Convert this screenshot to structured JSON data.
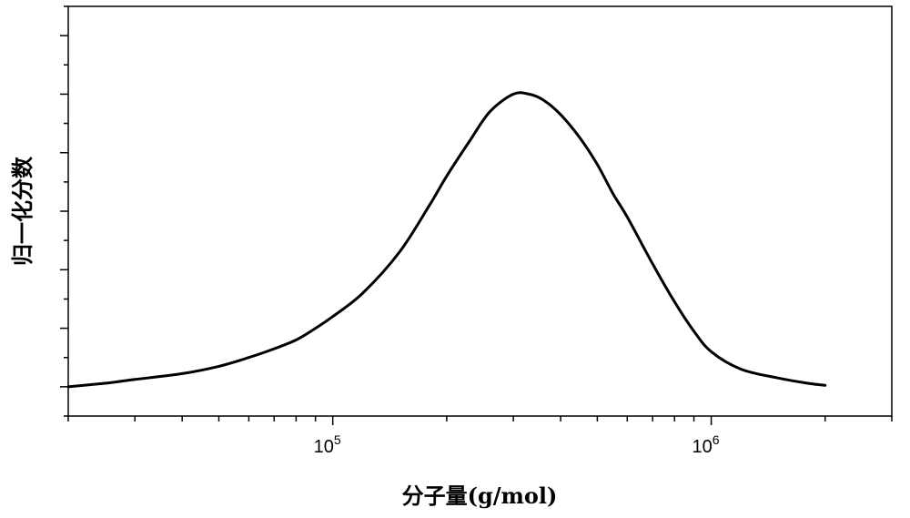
{
  "chart_data": {
    "type": "line",
    "title": "",
    "xlabel": "分子量(g/mol)",
    "ylabel": "归一化分数",
    "x_scale": "log",
    "xlim": [
      20000,
      3000000
    ],
    "ylim": [
      -0.1,
      1.3
    ],
    "grid": false,
    "x_major_ticks": [
      {
        "value": 100000,
        "base": "10",
        "exp": "5"
      },
      {
        "value": 1000000,
        "base": "10",
        "exp": "6"
      }
    ],
    "series": [
      {
        "x": [
          20000,
          25000,
          30000,
          40000,
          50000,
          60000,
          70000,
          80000,
          90000,
          100000,
          120000,
          150000,
          180000,
          200000,
          230000,
          260000,
          300000,
          330000,
          360000,
          400000,
          450000,
          500000,
          550000,
          600000,
          700000,
          800000,
          900000,
          1000000,
          1200000,
          1500000,
          1800000,
          2000000
        ],
        "y": [
          0.0,
          0.012,
          0.025,
          0.045,
          0.07,
          0.1,
          0.13,
          0.16,
          0.2,
          0.24,
          0.32,
          0.46,
          0.62,
          0.72,
          0.84,
          0.94,
          1.0,
          1.0,
          0.98,
          0.93,
          0.85,
          0.76,
          0.66,
          0.58,
          0.42,
          0.29,
          0.19,
          0.12,
          0.06,
          0.03,
          0.012,
          0.005
        ]
      }
    ]
  }
}
